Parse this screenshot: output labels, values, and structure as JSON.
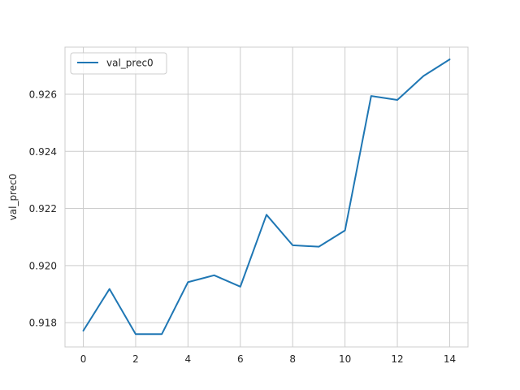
{
  "chart_data": {
    "type": "line",
    "title": "",
    "xlabel": "",
    "ylabel": "val_prec0",
    "xlim": [
      -0.7,
      14.7
    ],
    "ylim": [
      0.91715,
      0.92765
    ],
    "x_ticks": [
      0,
      2,
      4,
      6,
      8,
      10,
      12,
      14
    ],
    "y_ticks": [
      0.918,
      0.92,
      0.922,
      0.924,
      0.926
    ],
    "x_tick_labels": [
      "0",
      "2",
      "4",
      "6",
      "8",
      "10",
      "12",
      "14"
    ],
    "y_tick_labels": [
      "0.918",
      "0.920",
      "0.922",
      "0.924",
      "0.926"
    ],
    "grid": true,
    "legend": {
      "position": "top-left"
    },
    "series": [
      {
        "name": "val_prec0",
        "color": "#1f77b4",
        "x": [
          0,
          1,
          2,
          3,
          4,
          5,
          6,
          7,
          8,
          9,
          10,
          11,
          12,
          13,
          14
        ],
        "values": [
          0.91772,
          0.91918,
          0.9176,
          0.9176,
          0.91942,
          0.91966,
          0.91926,
          0.92178,
          0.92071,
          0.92066,
          0.92123,
          0.92594,
          0.9258,
          0.92664,
          0.92722
        ]
      }
    ]
  }
}
